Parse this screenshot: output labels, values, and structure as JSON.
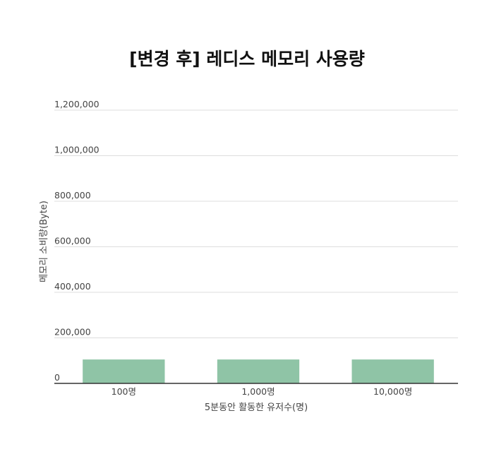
{
  "chart_data": {
    "type": "bar",
    "title": "[변경 후] 레디스 메모리 사용량",
    "xlabel": "5분동안 활동한 유저수(명)",
    "ylabel": "메모리 소비량(Byte)",
    "categories": [
      "100명",
      "1,000명",
      "10,000명"
    ],
    "values": [
      105000,
      105000,
      105000
    ],
    "ylim": [
      0,
      1200000
    ],
    "yticks": [
      0,
      200000,
      400000,
      600000,
      800000,
      1000000,
      1200000
    ],
    "ytick_labels": [
      "0",
      "200,000",
      "400,000",
      "600,000",
      "800,000",
      "1,000,000",
      "1,200,000"
    ],
    "grid": true,
    "legend": "none",
    "bar_color": "#8fc4a6",
    "grid_color": "#dddddd",
    "axis_color": "#333333",
    "title_color": "#111111",
    "tick_label_color": "#444444"
  }
}
